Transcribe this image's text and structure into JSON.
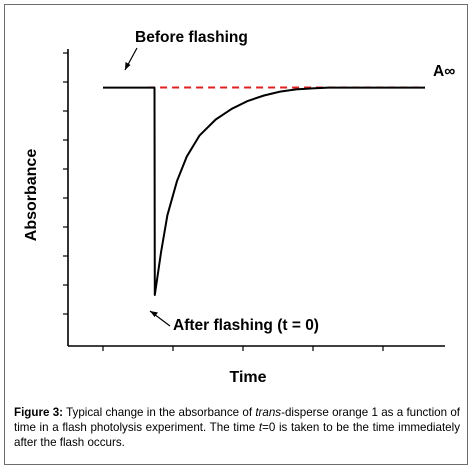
{
  "chart_data": {
    "type": "line",
    "xlabel": "Time",
    "ylabel": "Absorbance",
    "xlim": [
      0,
      100
    ],
    "ylim": [
      0,
      100
    ],
    "grid": false,
    "legend": "none",
    "series": [
      {
        "x": [
          0,
          14,
          16,
          16.1,
          18,
          20,
          23,
          26,
          30,
          35,
          40,
          45,
          50,
          55,
          60,
          65,
          70,
          75,
          80,
          85,
          90,
          95,
          100
        ],
        "y": [
          84,
          84,
          84,
          6,
          22,
          36,
          49,
          58,
          66,
          72,
          76,
          79,
          81,
          82.5,
          83.3,
          83.7,
          84,
          84,
          84,
          84,
          84,
          84,
          84
        ]
      }
    ],
    "asymptote": {
      "label": "A∞",
      "y": 84,
      "style": "dashed",
      "color": "#e02020"
    },
    "annotations": [
      {
        "text": "Before flashing"
      },
      {
        "text": "After flashing (t = 0)"
      }
    ]
  },
  "caption": {
    "label": "Figure 3:",
    "text_1": " Typical change in the absorbance of ",
    "italic_1": "trans",
    "text_2": "-disperse orange 1 as a function of time in a flash photolysis experiment. The time ",
    "italic_2": "t",
    "text_3": "=0 is taken to be the time immediately after the flash occurs."
  },
  "colors": {
    "curve": "#000000",
    "asymptote": "#e02020",
    "border": "#6d6d6d"
  }
}
